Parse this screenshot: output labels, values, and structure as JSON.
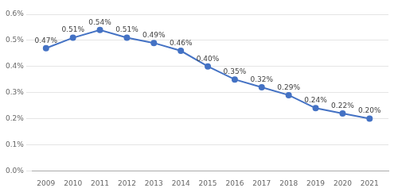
{
  "chart_data": {
    "type": "line",
    "x": [
      2009,
      2010,
      2011,
      2012,
      2013,
      2014,
      2015,
      2016,
      2017,
      2018,
      2019,
      2020,
      2021
    ],
    "values": [
      0.0047,
      0.0051,
      0.0054,
      0.0051,
      0.0049,
      0.0046,
      0.004,
      0.0035,
      0.0032,
      0.0029,
      0.0024,
      0.0022,
      0.002
    ],
    "value_labels": [
      "0.47%",
      "0.51%",
      "0.54%",
      "0.51%",
      "0.49%",
      "0.46%",
      "0.40%",
      "0.35%",
      "0.32%",
      "0.29%",
      "0.24%",
      "0.22%",
      "0.20%"
    ],
    "data_labels": true,
    "color": "#4472C4",
    "marker": "circle",
    "xlim": [
      2008.5,
      2021.7
    ],
    "xticks": [
      2009,
      2010,
      2011,
      2012,
      2013,
      2014,
      2015,
      2016,
      2017,
      2018,
      2019,
      2020,
      2021
    ],
    "ylim": [
      0,
      0.006
    ],
    "yticks": [
      {
        "value": 0.0,
        "label": "0.0%"
      },
      {
        "value": 0.001,
        "label": "0.1%"
      },
      {
        "value": 0.002,
        "label": "0.2%"
      },
      {
        "value": 0.003,
        "label": "0.3%"
      },
      {
        "value": 0.004,
        "label": "0.4%"
      },
      {
        "value": 0.005,
        "label": "0.5%"
      },
      {
        "value": 0.006,
        "label": "0.6%"
      }
    ],
    "grid": "y"
  }
}
